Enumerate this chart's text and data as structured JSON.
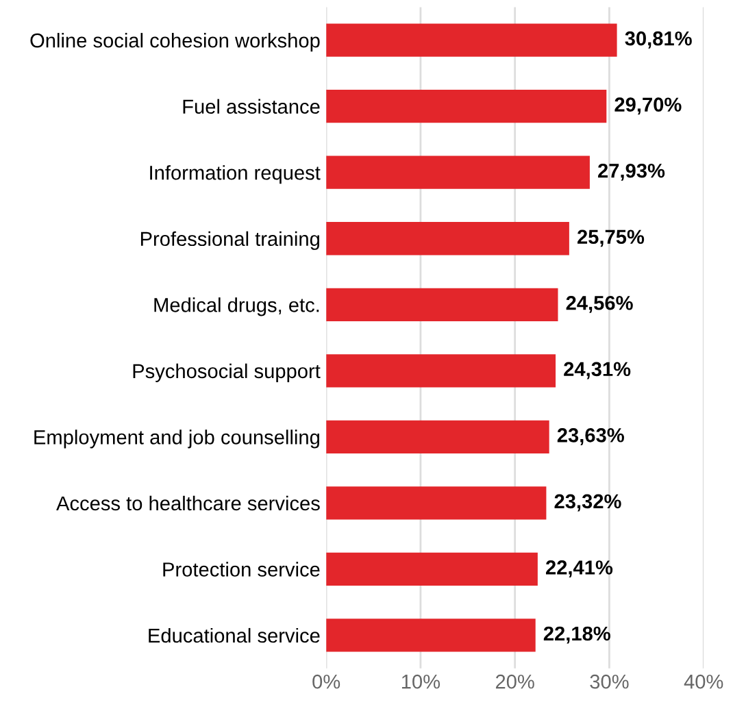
{
  "chart_data": {
    "type": "bar",
    "orientation": "horizontal",
    "categories": [
      "Online social cohesion workshop",
      "Fuel assistance",
      "Information request",
      "Professional training",
      "Medical drugs, etc.",
      "Psychosocial support",
      "Employment and job counselling",
      "Access to healthcare services",
      "Protection service",
      "Educational service"
    ],
    "values": [
      30.81,
      29.7,
      27.93,
      25.75,
      24.56,
      24.31,
      23.63,
      23.32,
      22.41,
      22.18
    ],
    "value_labels": [
      "30,81%",
      "29,70%",
      "27,93%",
      "25,75%",
      "24,56%",
      "24,31%",
      "23,63%",
      "23,32%",
      "22,41%",
      "22,18%"
    ],
    "color": "#e3262b",
    "xlim": [
      0,
      40
    ],
    "xticks": [
      {
        "value": 0,
        "label": "0%"
      },
      {
        "value": 10,
        "label": "10%"
      },
      {
        "value": 20,
        "label": "20%"
      },
      {
        "value": 30,
        "label": "30%"
      },
      {
        "value": 40,
        "label": "40%"
      }
    ],
    "grid": "x"
  }
}
